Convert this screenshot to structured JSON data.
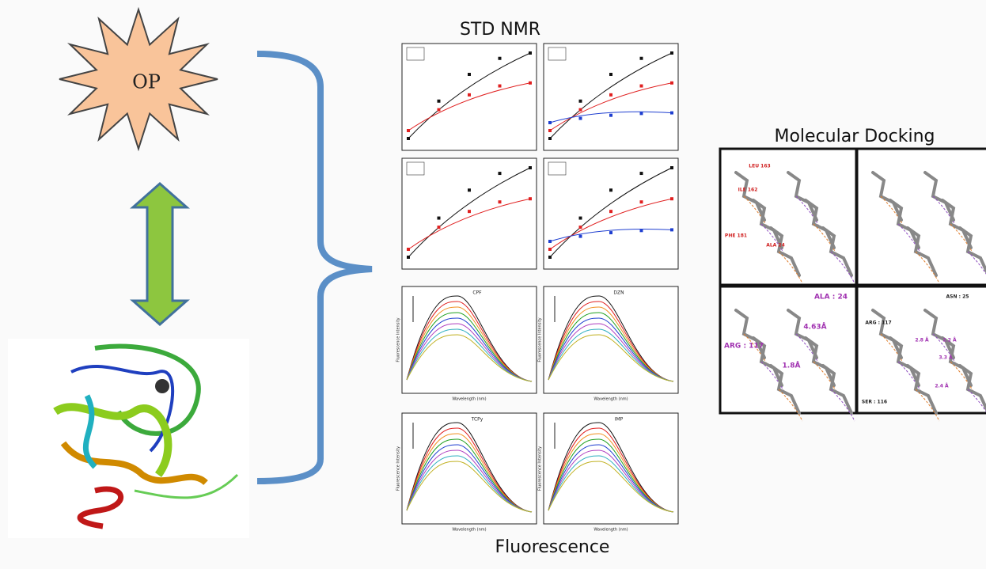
{
  "diagram": {
    "op_label": "OP",
    "std_nmr_title": "STD NMR",
    "fluorescence_title": "Fluorescence",
    "docking_title": "Molecular Docking",
    "fluorescence_panels": [
      "CPF",
      "DZN",
      "TCPy",
      "IMP"
    ],
    "fluorescence_axes": {
      "y": "Fluorescence Intensity",
      "x": "Wavelength (nm)"
    },
    "docking_labels": [
      "LEU 163",
      "ILE 162",
      "PHE 181",
      "ALA 24",
      "ALA : 24",
      "4.63Å",
      "ARG : 117",
      "1.8Å",
      "ASN : 25",
      "ARG : 117",
      "SER : 116",
      "2.8 Å",
      "2.2 Å",
      "3.3 Å",
      "2.4 Å"
    ]
  }
}
